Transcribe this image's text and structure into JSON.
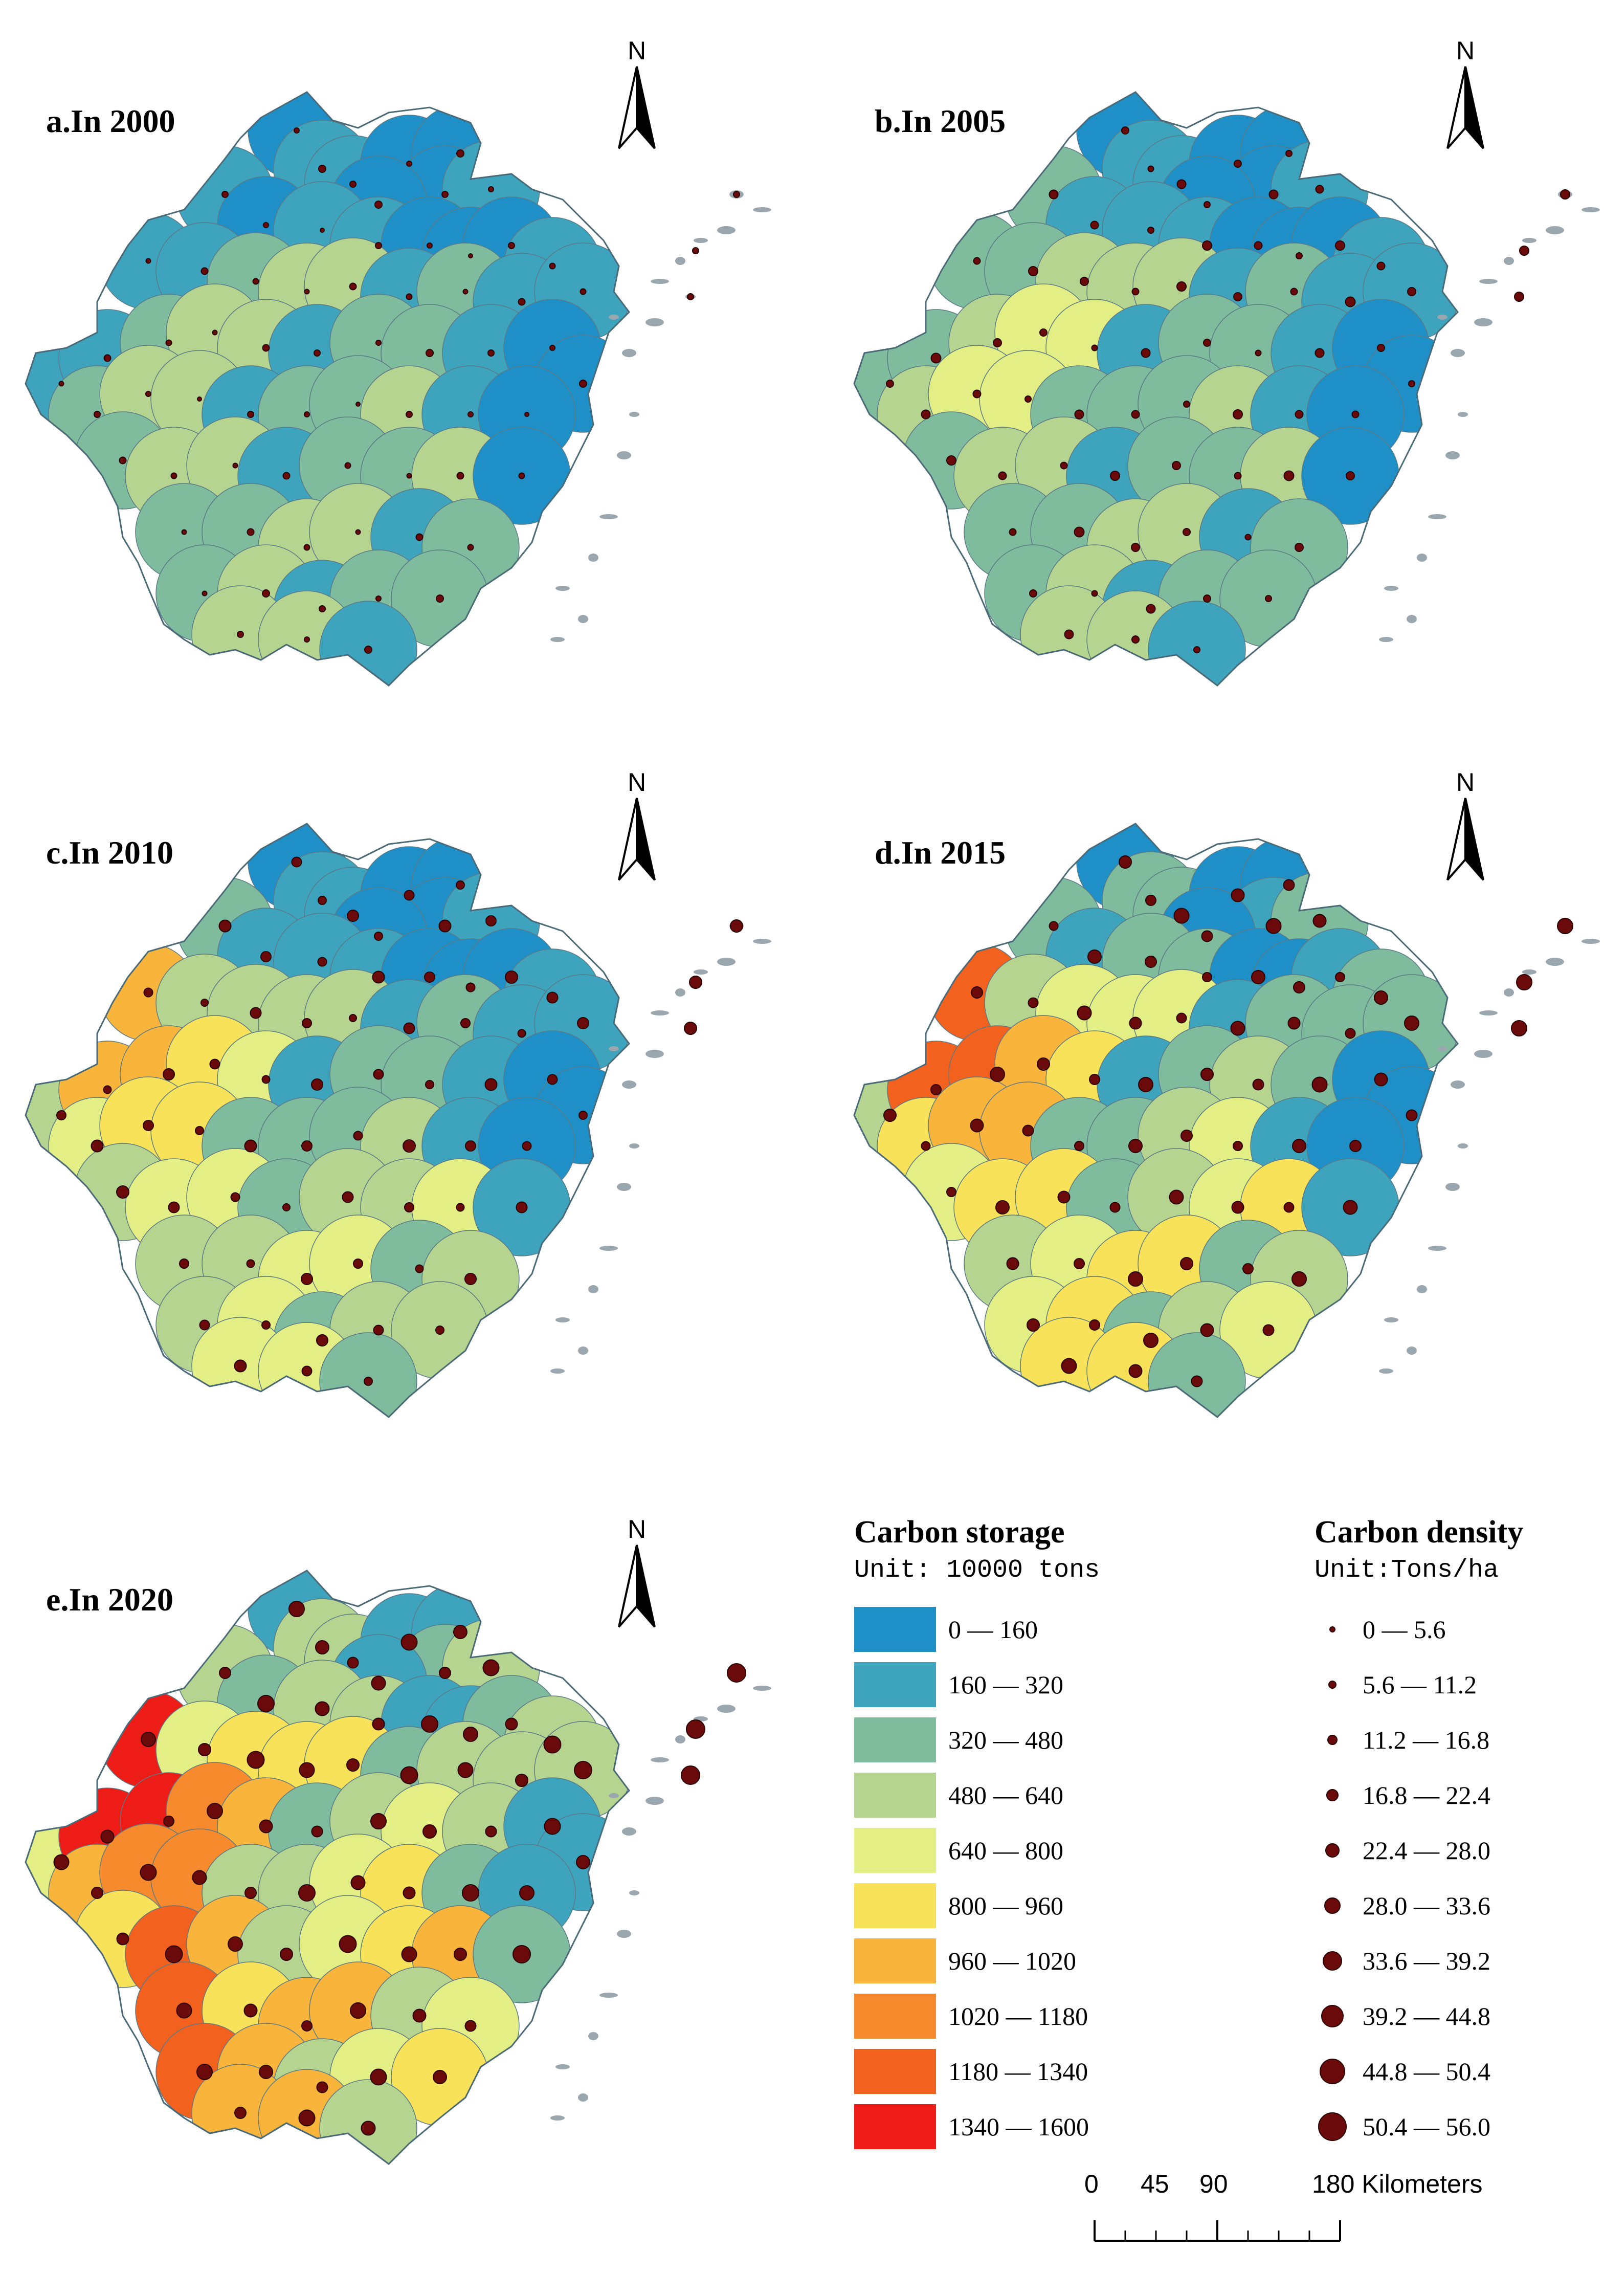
{
  "panels": [
    {
      "id": "a",
      "title": "a.In 2000"
    },
    {
      "id": "b",
      "title": "b.In 2005"
    },
    {
      "id": "c",
      "title": "c.In 2010"
    },
    {
      "id": "d",
      "title": "d.In 2015"
    },
    {
      "id": "e",
      "title": "e.In 2020"
    }
  ],
  "north_label": "N",
  "legend_storage": {
    "title": "Carbon storage",
    "unit": "Unit: 10000 tons",
    "classes": [
      {
        "label": "0 — 160",
        "color": "#1f8fc8"
      },
      {
        "label": "160 — 320",
        "color": "#3ea3bd"
      },
      {
        "label": "320 — 480",
        "color": "#7fbc9d"
      },
      {
        "label": "480 — 640",
        "color": "#b5d48f"
      },
      {
        "label": "640 — 800",
        "color": "#e3ee85"
      },
      {
        "label": "800 — 960",
        "color": "#f8e25a"
      },
      {
        "label": "960 — 1020",
        "color": "#f9b43c"
      },
      {
        "label": "1020 — 1180",
        "color": "#f78a2c"
      },
      {
        "label": "1180 — 1340",
        "color": "#f2621e"
      },
      {
        "label": "1340 — 1600",
        "color": "#ee1c16"
      }
    ]
  },
  "legend_density": {
    "title": "Carbon density",
    "unit": "Unit:Tons/ha",
    "classes": [
      {
        "label": "0 — 5.6",
        "size": 8
      },
      {
        "label": "5.6 — 11.2",
        "size": 12
      },
      {
        "label": "11.2 — 16.8",
        "size": 16
      },
      {
        "label": "16.8 — 22.4",
        "size": 20
      },
      {
        "label": "22.4 — 28.0",
        "size": 24
      },
      {
        "label": "28.0 — 33.6",
        "size": 28
      },
      {
        "label": "33.6 — 39.2",
        "size": 34
      },
      {
        "label": "39.2 — 44.8",
        "size": 40
      },
      {
        "label": "44.8 — 50.4",
        "size": 46
      },
      {
        "label": "50.4 — 56.0",
        "size": 52
      }
    ]
  },
  "scale_bar": {
    "labels": [
      "0",
      "45",
      "90",
      "180 Kilometers"
    ]
  }
}
